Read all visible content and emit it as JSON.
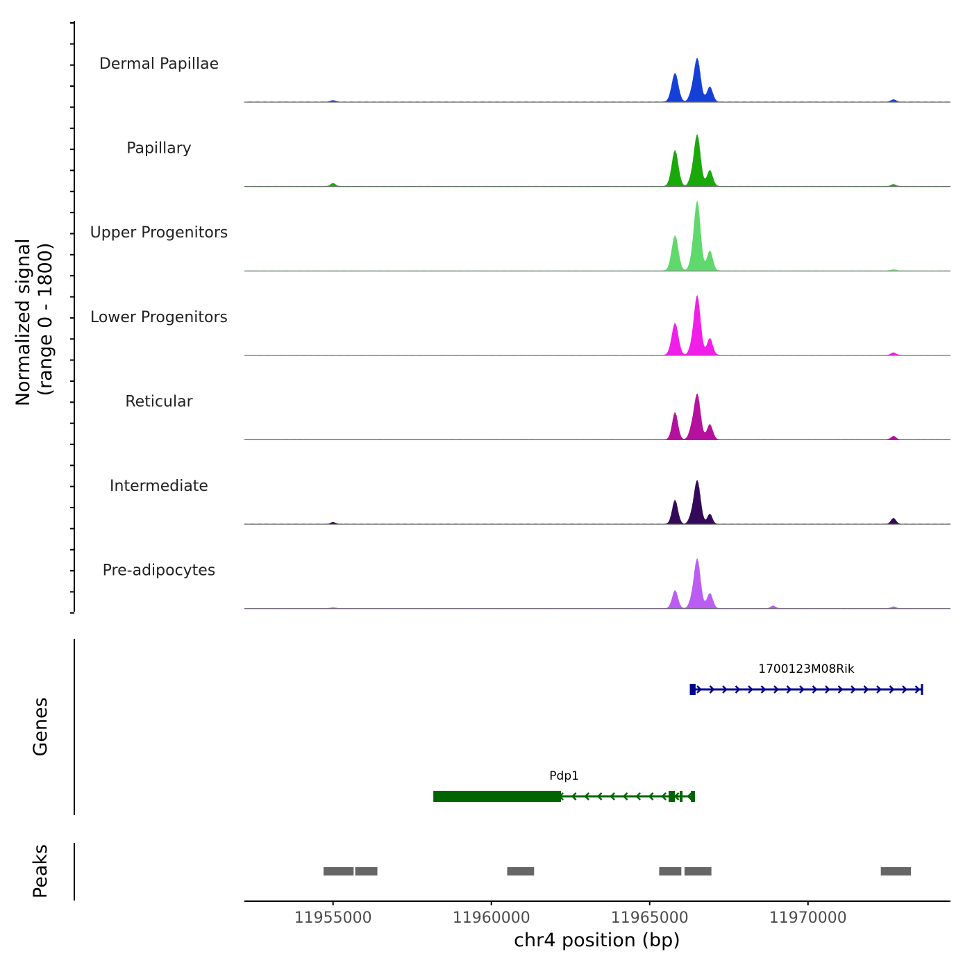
{
  "chart_data": {
    "type": "area",
    "title": "",
    "chromosome": "chr4",
    "x_range": [
      11952200,
      11974500
    ],
    "xlabel": "chr4 position (bp)",
    "ylabel": "Normalized signal\n(range 0 - 1800)",
    "ylabel_lines": [
      "Normalized signal",
      "(range 0 - 1800)"
    ],
    "y_range": [
      0,
      1800
    ],
    "x_ticks": [
      {
        "value": 11955000,
        "label": "11955000"
      },
      {
        "value": 11960000,
        "label": "11960000"
      },
      {
        "value": 11965000,
        "label": "11965000"
      },
      {
        "value": 11970000,
        "label": "11970000"
      }
    ],
    "series": [
      {
        "name": "Dermal Papillae",
        "color": "#1540d8",
        "peaks": [
          [
            11955000,
            35
          ],
          [
            11965800,
            720
          ],
          [
            11966300,
            130
          ],
          [
            11966500,
            1100
          ],
          [
            11966900,
            380
          ],
          [
            11972700,
            55
          ]
        ]
      },
      {
        "name": "Papillary",
        "color": "#1aa80a",
        "peaks": [
          [
            11955000,
            70
          ],
          [
            11965800,
            900
          ],
          [
            11966300,
            120
          ],
          [
            11966500,
            1300
          ],
          [
            11966900,
            400
          ],
          [
            11972700,
            45
          ]
        ]
      },
      {
        "name": "Upper Progenitors",
        "color": "#5fd96b",
        "peaks": [
          [
            11965800,
            880
          ],
          [
            11966300,
            110
          ],
          [
            11966500,
            1750
          ],
          [
            11966900,
            500
          ],
          [
            11972700,
            25
          ]
        ]
      },
      {
        "name": "Lower Progenitors",
        "color": "#f01ee8",
        "peaks": [
          [
            11965800,
            800
          ],
          [
            11966300,
            110
          ],
          [
            11966500,
            1500
          ],
          [
            11966900,
            420
          ],
          [
            11972700,
            60
          ]
        ]
      },
      {
        "name": "Reticular",
        "color": "#b4119e",
        "peaks": [
          [
            11965800,
            680
          ],
          [
            11966300,
            170
          ],
          [
            11966500,
            1150
          ],
          [
            11966900,
            380
          ],
          [
            11972700,
            80
          ]
        ]
      },
      {
        "name": "Intermediate",
        "color": "#34095a",
        "peaks": [
          [
            11955000,
            40
          ],
          [
            11965800,
            600
          ],
          [
            11966300,
            120
          ],
          [
            11966500,
            1100
          ],
          [
            11966900,
            250
          ],
          [
            11972700,
            140
          ]
        ]
      },
      {
        "name": "Pre-adipocytes",
        "color": "#bb5cf2",
        "peaks": [
          [
            11955000,
            20
          ],
          [
            11965800,
            450
          ],
          [
            11966300,
            110
          ],
          [
            11966500,
            1250
          ],
          [
            11966900,
            380
          ],
          [
            11968900,
            60
          ],
          [
            11972700,
            40
          ]
        ]
      }
    ],
    "genes_track_label": "Genes",
    "genes": [
      {
        "name": "1700123M08Rik",
        "strand": "+",
        "color": "#00008b",
        "start": 11966300,
        "end": 11973600,
        "exons": [
          [
            11966300,
            11966450
          ]
        ]
      },
      {
        "name": "Pdp1",
        "strand": "-",
        "color": "#006400",
        "start": 11958200,
        "end": 11966400,
        "exons": [
          [
            11958200,
            11962200
          ],
          [
            11965600,
            11965800
          ],
          [
            11965950,
            11966000
          ],
          [
            11966300,
            11966400
          ]
        ]
      }
    ],
    "peaks_track_label": "Peaks",
    "peaks_color": "#666666",
    "peaks": [
      [
        11954700,
        11955650
      ],
      [
        11955700,
        11956400
      ],
      [
        11960500,
        11961350
      ],
      [
        11965300,
        11966000
      ],
      [
        11966100,
        11966950
      ],
      [
        11972300,
        11973250
      ]
    ]
  }
}
